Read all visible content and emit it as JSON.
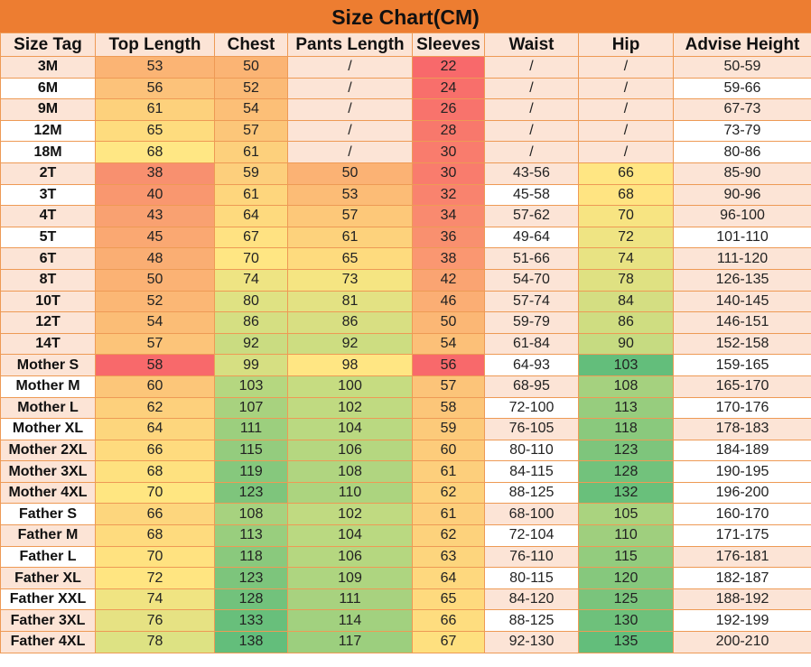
{
  "title": "Size Chart(CM)",
  "headers": [
    "Size Tag",
    "Top Length",
    "Chest",
    "Pants Length",
    "Sleeves",
    "Waist",
    "Hip",
    "Advise Height"
  ],
  "colors": {
    "title_bg": "#ed7d31",
    "header_bg": "#fce4d6",
    "pink": "#fce4d6",
    "white": "#ffffff",
    "border": "#ee9a55"
  },
  "rows": [
    {
      "cells": [
        "3M",
        "53",
        "50",
        "/",
        "22",
        "/",
        "/",
        "50-59"
      ],
      "colors": [
        "#fce4d6",
        "#fbb474",
        "#fbb474",
        "#fce4d6",
        "#f8696b",
        "#fce4d6",
        "#fce4d6",
        "#fce4d6"
      ]
    },
    {
      "cells": [
        "6M",
        "56",
        "52",
        "/",
        "24",
        "/",
        "/",
        "59-66"
      ],
      "colors": [
        "#ffffff",
        "#fcc27a",
        "#fbba76",
        "#fce4d6",
        "#f86f6b",
        "#fce4d6",
        "#fce4d6",
        "#ffffff"
      ]
    },
    {
      "cells": [
        "9M",
        "61",
        "54",
        "/",
        "26",
        "/",
        "/",
        "67-73"
      ],
      "colors": [
        "#fce4d6",
        "#fdd17c",
        "#fcbf77",
        "#fce4d6",
        "#f8736c",
        "#fce4d6",
        "#fce4d6",
        "#fce4d6"
      ]
    },
    {
      "cells": [
        "12M",
        "65",
        "57",
        "/",
        "28",
        "/",
        "/",
        "73-79"
      ],
      "colors": [
        "#ffffff",
        "#fedc7e",
        "#fcc679",
        "#fce4d6",
        "#f8786c",
        "#fce4d6",
        "#fce4d6",
        "#ffffff"
      ]
    },
    {
      "cells": [
        "18M",
        "68",
        "61",
        "/",
        "30",
        "/",
        "/",
        "80-86"
      ],
      "colors": [
        "#ffffff",
        "#ffe784",
        "#fdd07c",
        "#fce4d6",
        "#f97c6d",
        "#fce4d6",
        "#fce4d6",
        "#ffffff"
      ]
    },
    {
      "cells": [
        "2T",
        "38",
        "59",
        "50",
        "30",
        "43-56",
        "66",
        "85-90"
      ],
      "colors": [
        "#fce4d6",
        "#f8906f",
        "#fdcf7c",
        "#fbb274",
        "#f97c6d",
        "#fce4d6",
        "#ffe683",
        "#fce4d6"
      ]
    },
    {
      "cells": [
        "3T",
        "40",
        "61",
        "53",
        "32",
        "45-58",
        "68",
        "90-96"
      ],
      "colors": [
        "#ffffff",
        "#f9976f",
        "#fed67d",
        "#fcbc76",
        "#f9836e",
        "#ffffff",
        "#ffe482",
        "#fce4d6"
      ]
    },
    {
      "cells": [
        "4T",
        "43",
        "64",
        "57",
        "34",
        "57-62",
        "70",
        "96-100"
      ],
      "colors": [
        "#fce4d6",
        "#f9a171",
        "#feda7e",
        "#fdc879",
        "#f98a6f",
        "#fce4d6",
        "#f7e482",
        "#fce4d6"
      ]
    },
    {
      "cells": [
        "5T",
        "45",
        "67",
        "61",
        "36",
        "49-64",
        "72",
        "101-110"
      ],
      "colors": [
        "#ffffff",
        "#faa872",
        "#ffe282",
        "#fdd27c",
        "#f9906f",
        "#ffffff",
        "#efe483",
        "#ffffff"
      ]
    },
    {
      "cells": [
        "6T",
        "48",
        "70",
        "65",
        "38",
        "51-66",
        "74",
        "111-120"
      ],
      "colors": [
        "#fce4d6",
        "#faae73",
        "#ffe683",
        "#fedb7e",
        "#fa9771",
        "#fce4d6",
        "#e8e383",
        "#fce4d6"
      ]
    },
    {
      "cells": [
        "8T",
        "50",
        "74",
        "73",
        "42",
        "54-70",
        "78",
        "126-135"
      ],
      "colors": [
        "#fce4d6",
        "#fbb274",
        "#eee483",
        "#f5e582",
        "#faa472",
        "#fce4d6",
        "#dfe182",
        "#fce4d6"
      ]
    },
    {
      "cells": [
        "10T",
        "52",
        "80",
        "81",
        "46",
        "57-74",
        "84",
        "140-145"
      ],
      "colors": [
        "#fce4d6",
        "#fbb775",
        "#dfe283",
        "#e3e283",
        "#fbae74",
        "#fce4d6",
        "#d4de82",
        "#fce4d6"
      ]
    },
    {
      "cells": [
        "12T",
        "54",
        "86",
        "86",
        "50",
        "59-79",
        "86",
        "146-151"
      ],
      "colors": [
        "#fce4d6",
        "#fbbd76",
        "#d5df82",
        "#d8df82",
        "#fbb775",
        "#fce4d6",
        "#cfdd81",
        "#fce4d6"
      ]
    },
    {
      "cells": [
        "14T",
        "57",
        "92",
        "92",
        "54",
        "61-84",
        "90",
        "152-158"
      ],
      "colors": [
        "#fce4d6",
        "#fcc479",
        "#cadc81",
        "#cddd81",
        "#fcc078",
        "#fce4d6",
        "#c6db81",
        "#fce4d6"
      ]
    },
    {
      "cells": [
        "Mother S",
        "58",
        "99",
        "98",
        "56",
        "64-93",
        "103",
        "159-165"
      ],
      "colors": [
        "#fce4d6",
        "#f8696b",
        "#d6df82",
        "#ffe683",
        "#f8696b",
        "#ffffff",
        "#63be7b",
        "#ffffff"
      ]
    },
    {
      "cells": [
        "Mother M",
        "60",
        "103",
        "100",
        "57",
        "68-95",
        "108",
        "165-170"
      ],
      "colors": [
        "#ffffff",
        "#fcc679",
        "#b5d780",
        "#c6dc81",
        "#fcc479",
        "#fce4d6",
        "#a5d17f",
        "#fce4d6"
      ]
    },
    {
      "cells": [
        "Mother L",
        "62",
        "107",
        "102",
        "58",
        "72-100",
        "113",
        "170-176"
      ],
      "colors": [
        "#fce4d6",
        "#fdd07c",
        "#a8d27f",
        "#c0da81",
        "#fcc679",
        "#ffffff",
        "#97cd7e",
        "#ffffff"
      ]
    },
    {
      "cells": [
        "Mother XL",
        "64",
        "111",
        "104",
        "59",
        "76-105",
        "118",
        "178-183"
      ],
      "colors": [
        "#ffffff",
        "#fdd67d",
        "#9ccf7e",
        "#bad981",
        "#fcca7a",
        "#fce4d6",
        "#8ac97d",
        "#fce4d6"
      ]
    },
    {
      "cells": [
        "Mother 2XL",
        "66",
        "115",
        "106",
        "60",
        "80-110",
        "123",
        "184-189"
      ],
      "colors": [
        "#fce4d6",
        "#fedb7e",
        "#94cc7e",
        "#b5d780",
        "#fdcc7b",
        "#ffffff",
        "#7ec57c",
        "#ffffff"
      ]
    },
    {
      "cells": [
        "Mother 3XL",
        "68",
        "119",
        "108",
        "61",
        "84-115",
        "128",
        "190-195"
      ],
      "colors": [
        "#fce4d6",
        "#fee17f",
        "#86c87d",
        "#b0d580",
        "#fdcf7c",
        "#ffffff",
        "#72c27c",
        "#ffffff"
      ]
    },
    {
      "cells": [
        "Mother 4XL",
        "70",
        "123",
        "110",
        "62",
        "88-125",
        "132",
        "196-200"
      ],
      "colors": [
        "#fce4d6",
        "#ffe681",
        "#7ec57c",
        "#acd47f",
        "#fdd27c",
        "#ffffff",
        "#69c07b",
        "#ffffff"
      ]
    },
    {
      "cells": [
        "Father S",
        "66",
        "108",
        "102",
        "61",
        "68-100",
        "105",
        "160-170"
      ],
      "colors": [
        "#ffffff",
        "#fdd67d",
        "#a7d27f",
        "#c0da81",
        "#fdcf7c",
        "#fce4d6",
        "#aad37f",
        "#ffffff"
      ]
    },
    {
      "cells": [
        "Father M",
        "68",
        "113",
        "104",
        "62",
        "72-104",
        "110",
        "171-175"
      ],
      "colors": [
        "#fce4d6",
        "#fedb7e",
        "#99ce7e",
        "#bad981",
        "#fdd27c",
        "#ffffff",
        "#9fcf7e",
        "#ffffff"
      ]
    },
    {
      "cells": [
        "Father L",
        "70",
        "118",
        "106",
        "63",
        "76-110",
        "115",
        "176-181"
      ],
      "colors": [
        "#ffffff",
        "#ffe280",
        "#8ac97d",
        "#b5d780",
        "#fdd57d",
        "#fce4d6",
        "#93cc7e",
        "#fce4d6"
      ]
    },
    {
      "cells": [
        "Father XL",
        "72",
        "123",
        "109",
        "64",
        "80-115",
        "120",
        "182-187"
      ],
      "colors": [
        "#fce4d6",
        "#ffe581",
        "#7dc57c",
        "#aed580",
        "#fed87e",
        "#ffffff",
        "#86c87d",
        "#ffffff"
      ]
    },
    {
      "cells": [
        "Father XXL",
        "74",
        "128",
        "111",
        "65",
        "84-120",
        "125",
        "188-192"
      ],
      "colors": [
        "#ffffff",
        "#f0e482",
        "#72c27c",
        "#a8d27f",
        "#feda7e",
        "#fce4d6",
        "#7ac47c",
        "#fce4d6"
      ]
    },
    {
      "cells": [
        "Father 3XL",
        "76",
        "133",
        "114",
        "66",
        "88-125",
        "130",
        "192-199"
      ],
      "colors": [
        "#fce4d6",
        "#e6e283",
        "#68bf7b",
        "#a2d17f",
        "#fedd7f",
        "#ffffff",
        "#6ec17b",
        "#ffffff"
      ]
    },
    {
      "cells": [
        "Father 4XL",
        "78",
        "138",
        "117",
        "67",
        "92-130",
        "135",
        "200-210"
      ],
      "colors": [
        "#fce4d6",
        "#dde283",
        "#63be7b",
        "#9ccf7e",
        "#fee07f",
        "#fce4d6",
        "#63be7b",
        "#fce4d6"
      ]
    }
  ]
}
